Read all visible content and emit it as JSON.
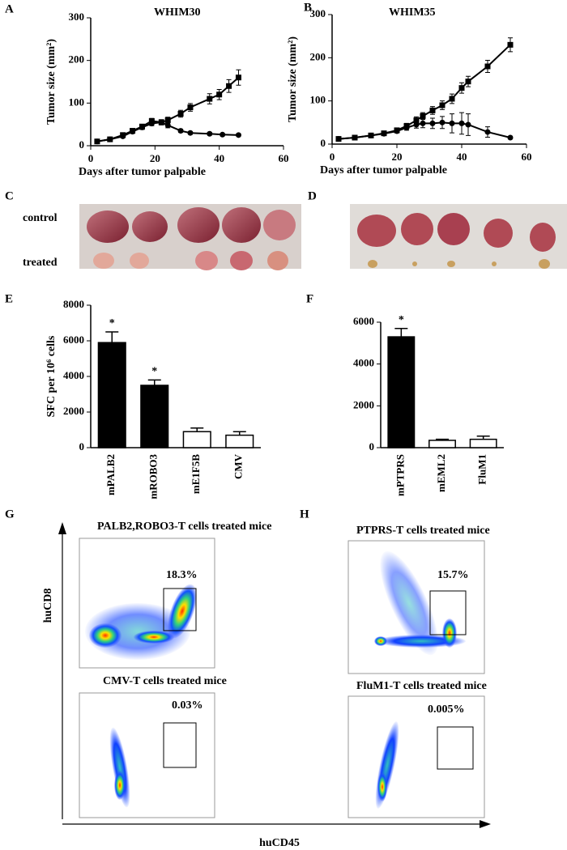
{
  "panel_labels": [
    "A",
    "B",
    "C",
    "D",
    "E",
    "F",
    "G",
    "H"
  ],
  "chart_data": [
    {
      "type": "line",
      "title": "WHIM30",
      "xlabel": "Days after tumor  palpable",
      "ylabel": "Tumor  size (mm²)",
      "xlim": [
        0,
        60
      ],
      "ylim": [
        0,
        300
      ],
      "xticks": [
        0,
        20,
        40,
        60
      ],
      "yticks": [
        0,
        100,
        200,
        300
      ],
      "series": [
        {
          "marker": "square",
          "color": "#000000",
          "x": [
            2,
            6,
            10,
            13,
            16,
            19,
            22,
            24,
            28,
            31,
            37,
            40,
            43,
            46
          ],
          "values": [
            10,
            15,
            25,
            35,
            45,
            58,
            55,
            60,
            75,
            90,
            110,
            120,
            140,
            160
          ],
          "errors": [
            2,
            3,
            4,
            5,
            5,
            6,
            6,
            7,
            8,
            9,
            12,
            12,
            15,
            18
          ]
        },
        {
          "marker": "circle",
          "color": "#000000",
          "x": [
            2,
            6,
            10,
            13,
            16,
            19,
            22,
            24,
            28,
            31,
            37,
            41,
            46
          ],
          "values": [
            10,
            15,
            22,
            33,
            43,
            52,
            55,
            48,
            35,
            30,
            28,
            26,
            25
          ],
          "errors": [
            2,
            2,
            3,
            4,
            5,
            5,
            6,
            6,
            4,
            3,
            3,
            3,
            3
          ]
        }
      ]
    },
    {
      "type": "line",
      "title": "WHIM35",
      "xlabel": "Days after tumor  palpable",
      "ylabel": "Tumor  size (mm²)",
      "xlim": [
        0,
        60
      ],
      "ylim": [
        0,
        300
      ],
      "xticks": [
        0,
        20,
        40,
        60
      ],
      "yticks": [
        0,
        100,
        200,
        300
      ],
      "series": [
        {
          "marker": "square",
          "color": "#000000",
          "x": [
            2,
            7,
            12,
            16,
            20,
            23,
            26,
            28,
            31,
            34,
            37,
            40,
            42,
            48,
            55
          ],
          "values": [
            12,
            15,
            20,
            25,
            32,
            42,
            55,
            65,
            78,
            90,
            105,
            130,
            145,
            180,
            230
          ],
          "errors": [
            2,
            2,
            3,
            3,
            4,
            6,
            8,
            8,
            9,
            10,
            11,
            12,
            12,
            14,
            16
          ]
        },
        {
          "marker": "circle",
          "color": "#000000",
          "x": [
            2,
            7,
            12,
            16,
            20,
            23,
            26,
            28,
            31,
            34,
            37,
            40,
            42,
            48,
            55
          ],
          "values": [
            12,
            15,
            20,
            24,
            30,
            38,
            45,
            48,
            48,
            50,
            48,
            48,
            45,
            28,
            15
          ],
          "errors": [
            2,
            2,
            3,
            3,
            4,
            6,
            8,
            10,
            12,
            14,
            22,
            25,
            25,
            12,
            3
          ]
        }
      ]
    },
    {
      "type": "bar",
      "ylabel": "SFC per 10⁶ cells",
      "categories": [
        "mPALB2",
        "mROBO3",
        "mE1F5B",
        "CMV"
      ],
      "values": [
        5900,
        3500,
        900,
        700
      ],
      "errors": [
        600,
        300,
        200,
        200
      ],
      "colors": [
        "#000000",
        "#000000",
        "#ffffff",
        "#ffffff"
      ],
      "annotations": [
        "*",
        "*",
        null,
        null
      ],
      "ylim": [
        0,
        8000
      ],
      "yticks": [
        0,
        2000,
        4000,
        6000,
        8000
      ]
    },
    {
      "type": "bar",
      "categories": [
        "mPTPRS",
        "mEML2",
        "FluM1"
      ],
      "values": [
        5300,
        350,
        400
      ],
      "errors": [
        400,
        50,
        150
      ],
      "colors": [
        "#000000",
        "#ffffff",
        "#ffffff"
      ],
      "annotations": [
        "*",
        null,
        null
      ],
      "ylim": [
        0,
        6000
      ],
      "yticks": [
        0,
        2000,
        4000,
        6000
      ]
    }
  ],
  "photo_rows": [
    "control",
    "treated"
  ],
  "flow": {
    "y_label": "huCD8",
    "x_label": "huCD45",
    "plots": [
      {
        "title": "PALB2,ROBO3-T cells treated mice",
        "gate": "18.3%"
      },
      {
        "title": "CMV-T cells treated mice",
        "gate": "0.03%"
      },
      {
        "title": "PTPRS-T cells treated mice",
        "gate": "15.7%"
      },
      {
        "title": "FluM1-T cells treated mice",
        "gate": "0.005%"
      }
    ]
  }
}
